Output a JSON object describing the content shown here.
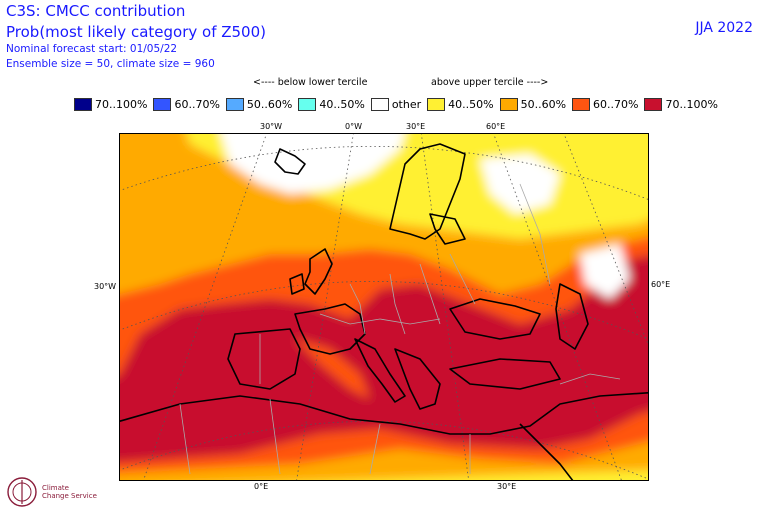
{
  "header": {
    "title": "C3S: CMCC contribution",
    "subtitle": "Prob(most likely category of Z500)",
    "forecast_start": "Nominal forecast start: 01/05/22",
    "ensemble": "Ensemble size = 50, climate size = 960",
    "season": "JJA 2022"
  },
  "tercile": {
    "below": "<---- below lower tercile",
    "above": "above upper tercile ---->"
  },
  "legend": [
    {
      "label": "70..100%",
      "color": "#00008b"
    },
    {
      "label": "60..70%",
      "color": "#3355ff"
    },
    {
      "label": "50..60%",
      "color": "#55aaff"
    },
    {
      "label": "40..50%",
      "color": "#66ffee"
    },
    {
      "label": "other",
      "color": "#ffffff"
    },
    {
      "label": "40..50%",
      "color": "#fff033"
    },
    {
      "label": "50..60%",
      "color": "#ffaa00"
    },
    {
      "label": "60..70%",
      "color": "#ff5511"
    },
    {
      "label": "70..100%",
      "color": "#c8102e"
    }
  ],
  "coords": {
    "top": [
      "30°W",
      "0°W",
      "30°E",
      "60°E"
    ],
    "left": "30°W",
    "right": "60°E",
    "bottom": [
      "0°E",
      "30°E"
    ]
  },
  "logo": {
    "line1": "Climate",
    "line2": "Change Service"
  }
}
